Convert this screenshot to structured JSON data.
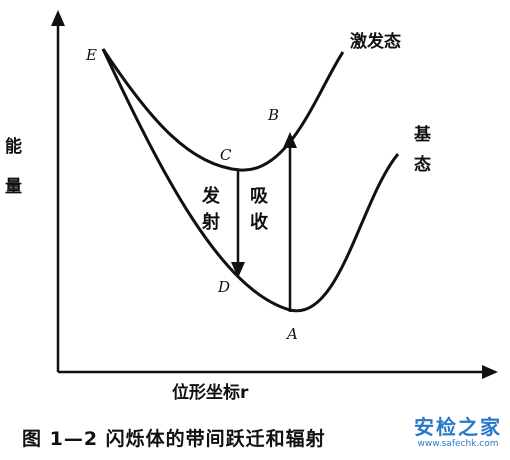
{
  "diagram": {
    "y_axis_label": [
      "能",
      "量"
    ],
    "x_axis_label": "位形坐标r",
    "excited_state_label": "激发态",
    "ground_state_label": [
      "基",
      "态"
    ],
    "points": {
      "A": "A",
      "B": "B",
      "C": "C",
      "D": "D",
      "E": "E"
    },
    "emission_label": [
      "发",
      "射"
    ],
    "absorption_label": [
      "吸",
      "收"
    ]
  },
  "caption": "图 1—2 闪烁体的带间跃迁和辐射",
  "watermark": {
    "text": "安检之家",
    "url": "www.safechk.com"
  }
}
